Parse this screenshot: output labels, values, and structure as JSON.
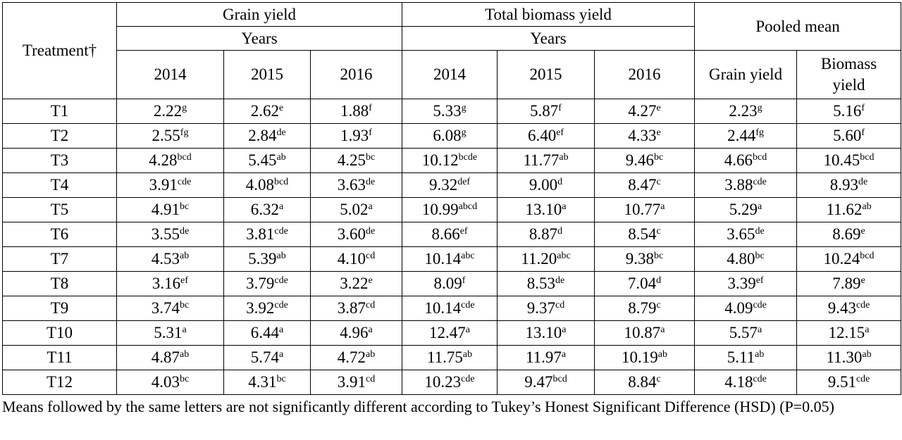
{
  "header": {
    "treatment": "Treatment†",
    "groups": [
      {
        "label": "Grain yield",
        "sub": "Years",
        "years": [
          "2014",
          "2015",
          "2016"
        ]
      },
      {
        "label": "Total biomass yield",
        "sub": "Years",
        "years": [
          "2014",
          "2015",
          "2016"
        ]
      }
    ],
    "pooled": {
      "label": "Pooled mean",
      "columns": [
        "Grain yield",
        "Biomass yield"
      ]
    }
  },
  "rows": [
    {
      "treatment": "T1",
      "cells": [
        [
          "2.22",
          "g"
        ],
        [
          "2.62",
          "e"
        ],
        [
          "1.88",
          "f"
        ],
        [
          "5.33",
          "g"
        ],
        [
          "5.87",
          "f"
        ],
        [
          "4.27",
          "e"
        ],
        [
          "2.23",
          "g"
        ],
        [
          "5.16",
          "f"
        ]
      ]
    },
    {
      "treatment": "T2",
      "cells": [
        [
          "2.55",
          "fg"
        ],
        [
          "2.84",
          "de"
        ],
        [
          "1.93",
          "f"
        ],
        [
          "6.08",
          "g"
        ],
        [
          "6.40",
          "ef"
        ],
        [
          "4.33",
          "e"
        ],
        [
          "2.44",
          "fg"
        ],
        [
          "5.60",
          "f"
        ]
      ]
    },
    {
      "treatment": "T3",
      "cells": [
        [
          "4.28",
          "bcd"
        ],
        [
          "5.45",
          "ab"
        ],
        [
          "4.25",
          "bc"
        ],
        [
          "10.12",
          "bcde"
        ],
        [
          "11.77",
          "ab"
        ],
        [
          "9.46",
          "bc"
        ],
        [
          "4.66",
          "bcd"
        ],
        [
          "10.45",
          "bcd"
        ]
      ]
    },
    {
      "treatment": "T4",
      "cells": [
        [
          "3.91",
          "cde"
        ],
        [
          "4.08",
          "bcd"
        ],
        [
          "3.63",
          "de"
        ],
        [
          "9.32",
          "def"
        ],
        [
          "9.00",
          "d"
        ],
        [
          "8.47",
          "c"
        ],
        [
          "3.88",
          "cde"
        ],
        [
          "8.93",
          "de"
        ]
      ]
    },
    {
      "treatment": "T5",
      "cells": [
        [
          "4.91",
          "bc"
        ],
        [
          "6.32",
          "a"
        ],
        [
          "5.02",
          "a"
        ],
        [
          "10.99",
          "abcd"
        ],
        [
          "13.10",
          "a"
        ],
        [
          "10.77",
          "a"
        ],
        [
          "5.29",
          "a"
        ],
        [
          "11.62",
          "ab"
        ]
      ]
    },
    {
      "treatment": "T6",
      "cells": [
        [
          "3.55",
          "de"
        ],
        [
          "3.81",
          "cde"
        ],
        [
          "3.60",
          "de"
        ],
        [
          "8.66",
          "ef"
        ],
        [
          "8.87",
          "d"
        ],
        [
          "8.54",
          "c"
        ],
        [
          "3.65",
          "de"
        ],
        [
          "8.69",
          "e"
        ]
      ]
    },
    {
      "treatment": "T7",
      "cells": [
        [
          "4.53",
          "ab"
        ],
        [
          "5.39",
          "ab"
        ],
        [
          "4.10",
          "cd"
        ],
        [
          "10.14",
          "abc"
        ],
        [
          "11.20",
          "abc"
        ],
        [
          "9.38",
          "bc"
        ],
        [
          "4.80",
          "bc"
        ],
        [
          "10.24",
          "bcd"
        ]
      ]
    },
    {
      "treatment": "T8",
      "cells": [
        [
          "3.16",
          "ef"
        ],
        [
          "3.79",
          "cde"
        ],
        [
          "3.22",
          "e"
        ],
        [
          "8.09",
          "f"
        ],
        [
          "8.53",
          "de"
        ],
        [
          "7.04",
          "d"
        ],
        [
          "3.39",
          "ef"
        ],
        [
          "7.89",
          "e"
        ]
      ]
    },
    {
      "treatment": "T9",
      "cells": [
        [
          "3.74",
          "bc"
        ],
        [
          "3.92",
          "cde"
        ],
        [
          "3.87",
          "cd"
        ],
        [
          "10.14",
          "cde"
        ],
        [
          "9.37",
          "cd"
        ],
        [
          "8.79",
          "c"
        ],
        [
          "4.09",
          "cde"
        ],
        [
          "9.43",
          "cde"
        ]
      ]
    },
    {
      "treatment": "T10",
      "cells": [
        [
          "5.31",
          "a"
        ],
        [
          "6.44",
          "a"
        ],
        [
          "4.96",
          "a"
        ],
        [
          "12.47",
          "a"
        ],
        [
          "13.10",
          "a"
        ],
        [
          "10.87",
          "a"
        ],
        [
          "5.57",
          "a"
        ],
        [
          "12.15",
          "a"
        ]
      ]
    },
    {
      "treatment": "T11",
      "cells": [
        [
          "4.87",
          "ab"
        ],
        [
          "5.74",
          "a"
        ],
        [
          "4.72",
          "ab"
        ],
        [
          "11.75",
          "ab"
        ],
        [
          "11.97",
          "a"
        ],
        [
          "10.19",
          "ab"
        ],
        [
          "5.11",
          "ab"
        ],
        [
          "11.30",
          "ab"
        ]
      ]
    },
    {
      "treatment": "T12",
      "cells": [
        [
          "4.03",
          "bc"
        ],
        [
          "4.31",
          "bc"
        ],
        [
          "3.91",
          "cd"
        ],
        [
          "10.23",
          "cde"
        ],
        [
          "9.47",
          "bcd"
        ],
        [
          "8.84",
          "c"
        ],
        [
          "4.18",
          "cde"
        ],
        [
          "9.51",
          "cde"
        ]
      ]
    }
  ],
  "footnote": "Means followed by the same letters are not significantly different according to Tukey’s Honest Significant Difference (HSD) (P=0.05)"
}
